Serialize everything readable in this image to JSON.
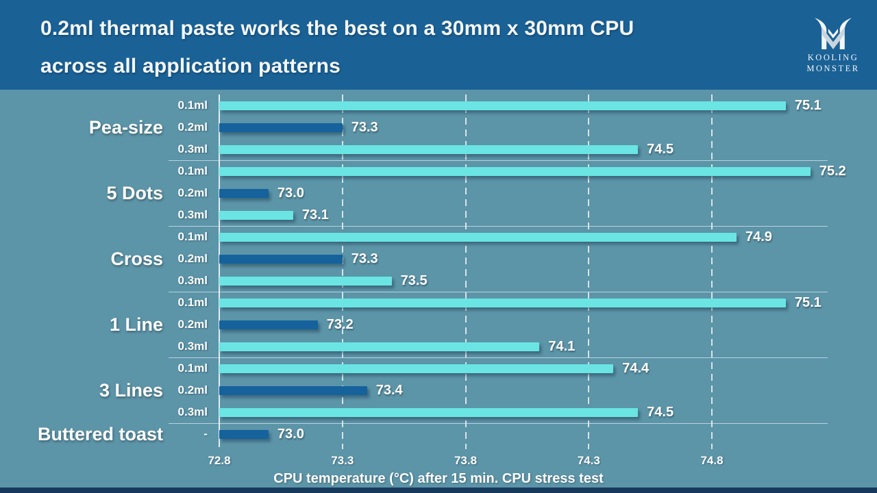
{
  "header": {
    "title_line1": "0.2ml thermal paste works the best on a 30mm x 30mm CPU",
    "title_line2": "across all application patterns",
    "logo": {
      "line1": "KOOLING",
      "line2": "MONSTER"
    }
  },
  "colors": {
    "header_bg": "#1A6196",
    "chart_bg": "#5C94A8",
    "bottom_strip": "#17395C",
    "bar_light": "#6AE5E3",
    "bar_dark": "#15629D"
  },
  "chart_data": {
    "type": "bar",
    "orientation": "horizontal",
    "title": "0.2ml thermal paste works the best on a 30mm x 30mm CPU across all application patterns",
    "xlabel": "CPU temperature (°C) after 15 min. CPU stress test",
    "xlim": [
      72.8,
      75.27
    ],
    "xticks": [
      72.8,
      73.3,
      73.8,
      74.3,
      74.8
    ],
    "grid": "dashed-vertical",
    "legend": "none",
    "groups": [
      {
        "category": "Pea-size",
        "bars": [
          {
            "label": "0.1ml",
            "value": 75.1,
            "color": "light"
          },
          {
            "label": "0.2ml",
            "value": 73.3,
            "color": "dark"
          },
          {
            "label": "0.3ml",
            "value": 74.5,
            "color": "light"
          }
        ]
      },
      {
        "category": "5 Dots",
        "bars": [
          {
            "label": "0.1ml",
            "value": 75.2,
            "color": "light"
          },
          {
            "label": "0.2ml",
            "value": 73.0,
            "color": "dark"
          },
          {
            "label": "0.3ml",
            "value": 73.1,
            "color": "light"
          }
        ]
      },
      {
        "category": "Cross",
        "bars": [
          {
            "label": "0.1ml",
            "value": 74.9,
            "color": "light"
          },
          {
            "label": "0.2ml",
            "value": 73.3,
            "color": "dark"
          },
          {
            "label": "0.3ml",
            "value": 73.5,
            "color": "light"
          }
        ]
      },
      {
        "category": "1 Line",
        "bars": [
          {
            "label": "0.1ml",
            "value": 75.1,
            "color": "light"
          },
          {
            "label": "0.2ml",
            "value": 73.2,
            "color": "dark"
          },
          {
            "label": "0.3ml",
            "value": 74.1,
            "color": "light"
          }
        ]
      },
      {
        "category": "3 Lines",
        "bars": [
          {
            "label": "0.1ml",
            "value": 74.4,
            "color": "light"
          },
          {
            "label": "0.2ml",
            "value": 73.4,
            "color": "dark"
          },
          {
            "label": "0.3ml",
            "value": 74.5,
            "color": "light"
          }
        ]
      },
      {
        "category": "Buttered toast",
        "bars": [
          {
            "label": "-",
            "value": 73.0,
            "color": "dark"
          }
        ]
      }
    ]
  }
}
